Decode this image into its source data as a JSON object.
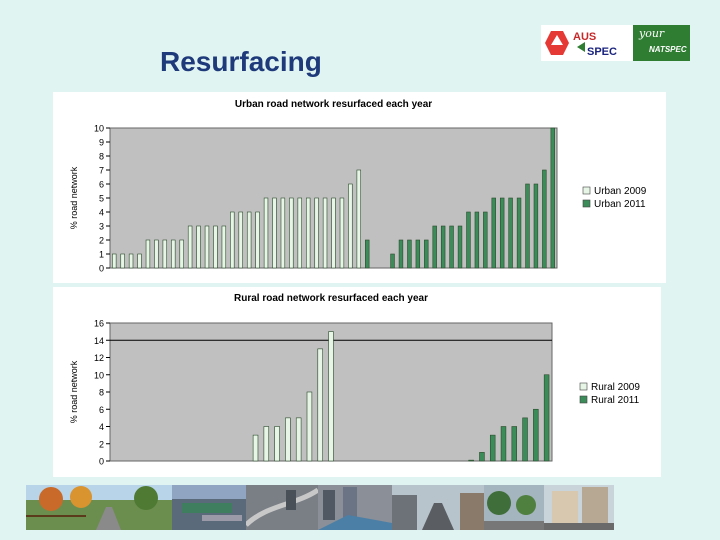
{
  "slide": {
    "title": "Resurfacing"
  },
  "logos": {
    "aus_text": "AUS",
    "spec_text": "SPEC",
    "natspec_script": "your",
    "natspec_text": "NATSPEC"
  },
  "colors": {
    "title": "#1f3a7a",
    "background": "#e0f5f2",
    "plot_bg": "#c0c0c0",
    "series_2009": "#e6f5e6",
    "series_2011": "#3c8c5a"
  },
  "chart_data": [
    {
      "type": "bar",
      "title": "Urban road network resurfaced each year",
      "ylabel": "% road network",
      "xlabel": "",
      "ylim": [
        0,
        10
      ],
      "yticks": [
        0,
        1,
        2,
        3,
        4,
        5,
        6,
        7,
        8,
        9,
        10
      ],
      "grid": false,
      "legend_position": "right",
      "series": [
        {
          "name": "Urban 2009",
          "values": [
            1,
            1,
            1,
            1,
            2,
            2,
            2,
            2,
            2,
            3,
            3,
            3,
            3,
            3,
            4,
            4,
            4,
            4,
            5,
            5,
            5,
            5,
            5,
            5,
            5,
            5,
            5,
            5,
            6,
            7,
            2,
            0,
            0,
            1,
            2,
            2,
            2,
            2,
            3,
            3,
            3,
            3,
            4,
            4,
            4,
            5,
            5,
            5,
            5,
            6,
            6,
            7,
            10
          ]
        }
      ]
    },
    {
      "type": "bar",
      "title": "Rural road network resurfaced each year",
      "ylabel": "% road network",
      "xlabel": "",
      "ylim": [
        0,
        16
      ],
      "yticks": [
        0,
        2,
        4,
        6,
        8,
        10,
        12,
        14,
        16
      ],
      "grid": false,
      "reference_line": 14,
      "legend_position": "right",
      "series": [
        {
          "name": "Rural 2009",
          "values": [
            0,
            0,
            0,
            0,
            0,
            0,
            0,
            0,
            0,
            0,
            0,
            0,
            0,
            3,
            4,
            4,
            5,
            5,
            8,
            13,
            15,
            0,
            0,
            0,
            0,
            0,
            0,
            0,
            0,
            0,
            0,
            0,
            0,
            0.1,
            1,
            3,
            4,
            4,
            5,
            6,
            10
          ]
        },
        {
          "name": "Rural 2011",
          "values": []
        }
      ]
    }
  ]
}
